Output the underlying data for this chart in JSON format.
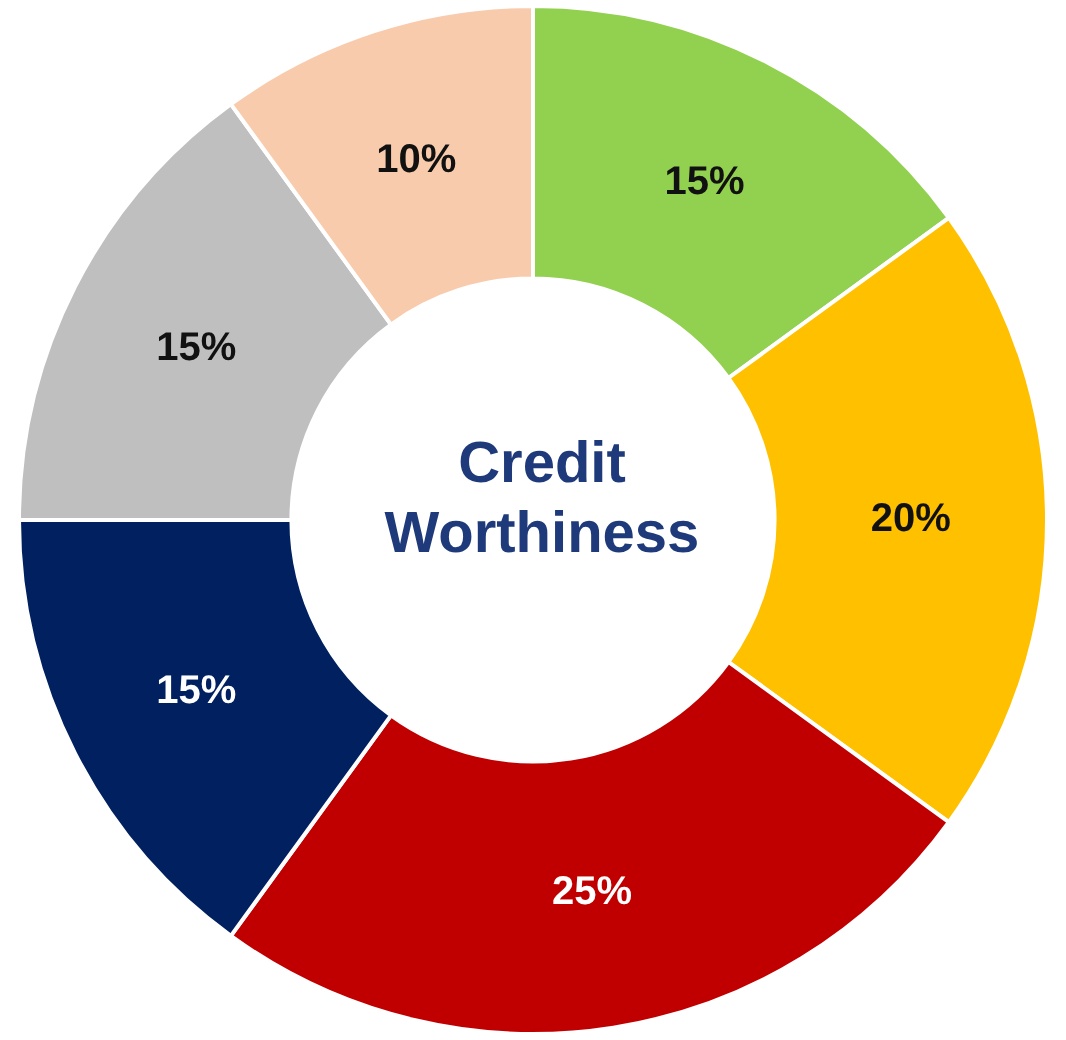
{
  "chart_data": {
    "type": "donut",
    "title": "Credit Worthiness",
    "categories": [
      null,
      null,
      null,
      null,
      null,
      null
    ],
    "values": [
      15,
      20,
      25,
      15,
      15,
      10
    ],
    "colors": [
      "#92d050",
      "#ffc000",
      "#c00000",
      "#002060",
      "#bfbfbf",
      "#f8cbad"
    ],
    "value_labels": [
      "15%",
      "20%",
      "25%",
      "15%",
      "15%",
      "10%"
    ],
    "legend": false
  }
}
